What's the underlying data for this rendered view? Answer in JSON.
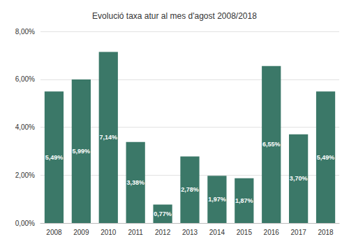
{
  "chart_data": {
    "type": "bar",
    "title": "Evolució taxa atur al mes d'agost 2008/2018",
    "categories": [
      "2008",
      "2009",
      "2010",
      "2011",
      "2012",
      "2013",
      "2014",
      "2015",
      "2016",
      "2017",
      "2018"
    ],
    "values": [
      5.49,
      5.99,
      7.14,
      3.38,
      0.77,
      2.78,
      1.97,
      1.87,
      6.55,
      3.7,
      5.49
    ],
    "value_labels": [
      "5,49%",
      "5,99%",
      "7,14%",
      "3,38%",
      "0,77%",
      "2,78%",
      "1,97%",
      "1,87%",
      "6,55%",
      "3,70%",
      "5,49%"
    ],
    "color": "#3b7868",
    "ylim": [
      0,
      8
    ],
    "yticks": [
      {
        "value": 0,
        "label": "0,00%"
      },
      {
        "value": 2,
        "label": "2,00%"
      },
      {
        "value": 4,
        "label": "4,00%"
      },
      {
        "value": 6,
        "label": "6,00%"
      },
      {
        "value": 8,
        "label": "8,00%"
      }
    ],
    "grid": true,
    "data_labels": true
  }
}
